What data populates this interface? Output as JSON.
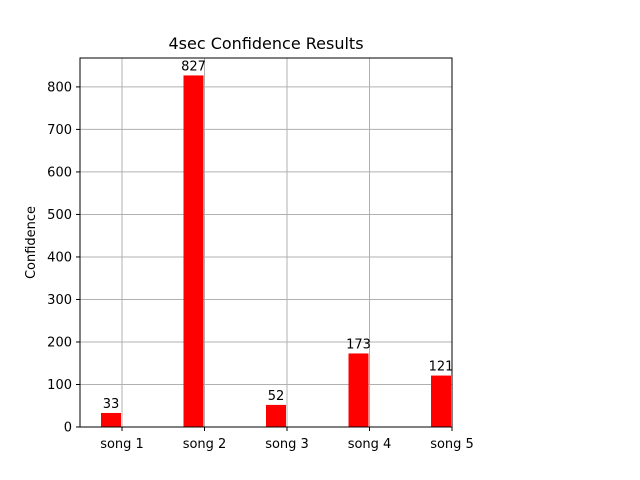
{
  "chart_data": {
    "type": "bar",
    "title": "4sec Confidence Results",
    "xlabel": "",
    "ylabel": "Confidence",
    "categories": [
      "song 1",
      "song 2",
      "song 3",
      "song 4",
      "song 5"
    ],
    "values": [
      33,
      827,
      52,
      173,
      121
    ],
    "data_labels": [
      "33",
      "827",
      "52",
      "173",
      "121"
    ],
    "ylim": [
      0,
      868
    ],
    "y_ticks": [
      0,
      100,
      200,
      300,
      400,
      500,
      600,
      700,
      800
    ],
    "y_tick_labels": [
      "0",
      "100",
      "200",
      "300",
      "400",
      "500",
      "600",
      "700",
      "800"
    ],
    "grid": true,
    "legend": "none",
    "colors": {
      "bar": "#ff0000",
      "grid": "#b0b0b0",
      "axis": "#000000"
    }
  }
}
